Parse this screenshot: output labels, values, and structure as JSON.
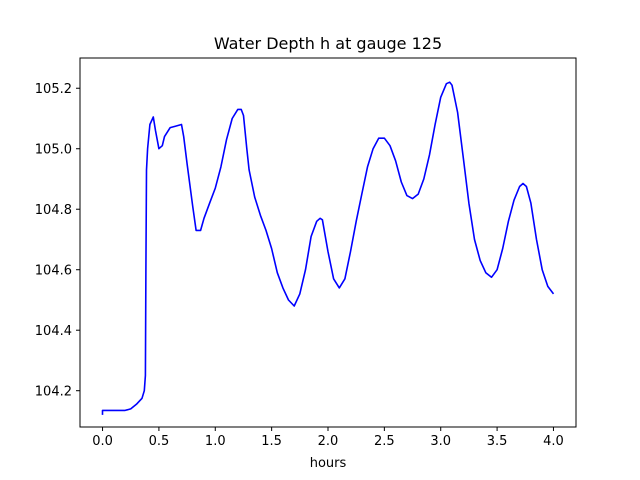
{
  "chart_data": {
    "type": "line",
    "title": "Water Depth h at gauge 125",
    "xlabel": "hours",
    "ylabel": "",
    "xlim": [
      -0.2,
      4.2
    ],
    "ylim": [
      104.08,
      105.3
    ],
    "xticks": [
      "0.0",
      "0.5",
      "1.0",
      "1.5",
      "2.0",
      "2.5",
      "3.0",
      "3.5",
      "4.0"
    ],
    "yticks": [
      "104.2",
      "104.4",
      "104.6",
      "104.8",
      "105.0",
      "105.2"
    ],
    "grid": false,
    "legend": "none",
    "series": [
      {
        "color": "#0000ff",
        "x": [
          0.0,
          0.0,
          0.02,
          0.1,
          0.2,
          0.25,
          0.3,
          0.35,
          0.37,
          0.38,
          0.385,
          0.39,
          0.4,
          0.42,
          0.45,
          0.47,
          0.5,
          0.53,
          0.55,
          0.6,
          0.65,
          0.7,
          0.72,
          0.75,
          0.8,
          0.83,
          0.87,
          0.9,
          0.95,
          1.0,
          1.05,
          1.1,
          1.15,
          1.2,
          1.23,
          1.25,
          1.28,
          1.3,
          1.35,
          1.4,
          1.45,
          1.5,
          1.55,
          1.6,
          1.65,
          1.7,
          1.75,
          1.8,
          1.85,
          1.9,
          1.93,
          1.95,
          2.0,
          2.05,
          2.1,
          2.15,
          2.2,
          2.25,
          2.3,
          2.35,
          2.4,
          2.45,
          2.5,
          2.55,
          2.6,
          2.65,
          2.7,
          2.75,
          2.8,
          2.85,
          2.9,
          2.95,
          3.0,
          3.05,
          3.08,
          3.1,
          3.15,
          3.2,
          3.25,
          3.3,
          3.35,
          3.4,
          3.45,
          3.5,
          3.55,
          3.6,
          3.65,
          3.7,
          3.73,
          3.76,
          3.8,
          3.85,
          3.9,
          3.95,
          4.0
        ],
        "y": [
          104.12,
          104.135,
          104.135,
          104.135,
          104.135,
          104.14,
          104.155,
          104.175,
          104.2,
          104.25,
          104.6,
          104.93,
          105.0,
          105.08,
          105.105,
          105.06,
          105.0,
          105.01,
          105.04,
          105.07,
          105.075,
          105.08,
          105.04,
          104.95,
          104.81,
          104.73,
          104.73,
          104.77,
          104.82,
          104.87,
          104.94,
          105.03,
          105.1,
          105.13,
          105.13,
          105.11,
          105.0,
          104.93,
          104.84,
          104.78,
          104.73,
          104.67,
          104.59,
          104.54,
          104.5,
          104.48,
          104.52,
          104.6,
          104.71,
          104.76,
          104.77,
          104.765,
          104.66,
          104.57,
          104.54,
          104.57,
          104.66,
          104.76,
          104.85,
          104.94,
          105.0,
          105.035,
          105.035,
          105.01,
          104.96,
          104.89,
          104.845,
          104.835,
          104.85,
          104.9,
          104.98,
          105.08,
          105.17,
          105.215,
          105.22,
          105.21,
          105.12,
          104.97,
          104.82,
          104.7,
          104.63,
          104.59,
          104.575,
          104.6,
          104.67,
          104.76,
          104.83,
          104.875,
          104.885,
          104.875,
          104.82,
          104.7,
          104.6,
          104.545,
          104.52
        ]
      }
    ]
  }
}
